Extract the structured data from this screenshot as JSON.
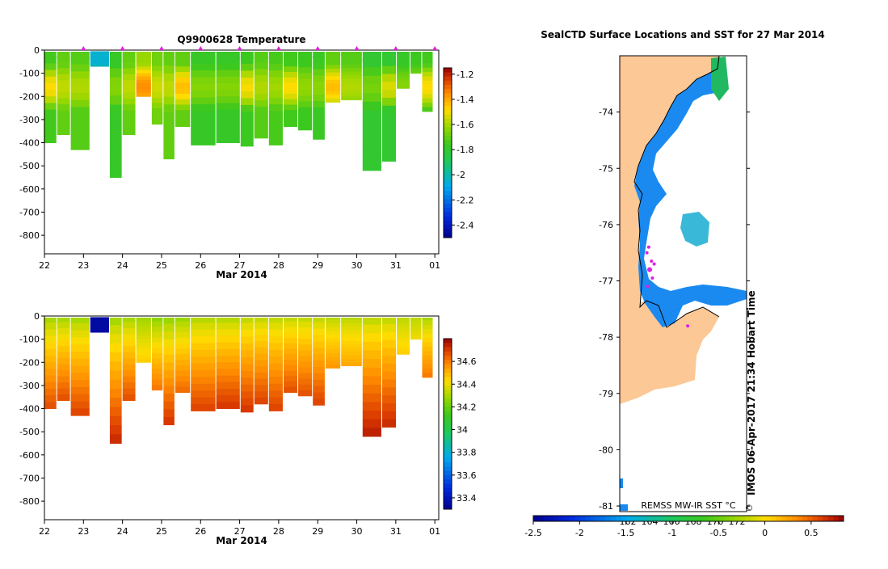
{
  "chart_data": [
    {
      "type": "heatmap",
      "title": "Q9900628  Temperature",
      "xlabel": "Mar 2014",
      "ylabel": "",
      "x_ticks": [
        "22",
        "23",
        "24",
        "25",
        "26",
        "27",
        "28",
        "29",
        "30",
        "31",
        "01"
      ],
      "y_ticks": [
        "0",
        "-100",
        "-200",
        "-300",
        "-400",
        "-500",
        "-600",
        "-700",
        "-800"
      ],
      "ylim": [
        -880,
        0
      ],
      "xlim": [
        22,
        32.1
      ],
      "colorbar": {
        "min": -2.5,
        "max": -1.15,
        "ticks": [
          "-1.2",
          "-1.4",
          "-1.6",
          "-1.8",
          "-2",
          "-2.2",
          "-2.4"
        ],
        "tick_values": [
          -1.2,
          -1.4,
          -1.6,
          -1.8,
          -2,
          -2.2,
          -2.4
        ]
      },
      "profiles": [
        {
          "day": 22.15,
          "max_depth": 400,
          "value": -1.75
        },
        {
          "day": 22.5,
          "max_depth": 365,
          "value": -1.7
        },
        {
          "day": 22.85,
          "max_depth": 430,
          "value": -1.72
        },
        {
          "day": 23.5,
          "max_depth": 70,
          "value": -2.05
        },
        {
          "day": 23.85,
          "max_depth": 550,
          "value": -1.78
        },
        {
          "day": 24.15,
          "max_depth": 365,
          "value": -1.7
        },
        {
          "day": 24.55,
          "max_depth": 200,
          "value": -1.62
        },
        {
          "day": 24.95,
          "max_depth": 320,
          "value": -1.68
        },
        {
          "day": 25.15,
          "max_depth": 470,
          "value": -1.7
        },
        {
          "day": 25.55,
          "max_depth": 330,
          "value": -1.7
        },
        {
          "day": 25.95,
          "max_depth": 410,
          "value": -1.78
        },
        {
          "day": 26.85,
          "max_depth": 400,
          "value": -1.78
        },
        {
          "day": 27.2,
          "max_depth": 415,
          "value": -1.76
        },
        {
          "day": 27.55,
          "max_depth": 380,
          "value": -1.72
        },
        {
          "day": 27.95,
          "max_depth": 410,
          "value": -1.74
        },
        {
          "day": 28.3,
          "max_depth": 330,
          "value": -1.75
        },
        {
          "day": 28.7,
          "max_depth": 345,
          "value": -1.76
        },
        {
          "day": 29.05,
          "max_depth": 385,
          "value": -1.77
        },
        {
          "day": 29.35,
          "max_depth": 225,
          "value": -1.7
        },
        {
          "day": 29.85,
          "max_depth": 215,
          "value": -1.72
        },
        {
          "day": 30.45,
          "max_depth": 520,
          "value": -1.8
        },
        {
          "day": 30.85,
          "max_depth": 480,
          "value": -1.8
        },
        {
          "day": 31.2,
          "max_depth": 165,
          "value": -1.78
        },
        {
          "day": 31.55,
          "max_depth": 100,
          "value": -1.76
        },
        {
          "day": 31.8,
          "max_depth": 265,
          "value": -1.75
        }
      ]
    },
    {
      "type": "heatmap",
      "title": "",
      "xlabel": "Mar 2014",
      "ylabel": "",
      "x_ticks": [
        "22",
        "23",
        "24",
        "25",
        "26",
        "27",
        "28",
        "29",
        "30",
        "31",
        "01"
      ],
      "y_ticks": [
        "0",
        "-100",
        "-200",
        "-300",
        "-400",
        "-500",
        "-600",
        "-700",
        "-800"
      ],
      "ylim": [
        -880,
        0
      ],
      "xlim": [
        22,
        32.1
      ],
      "colorbar": {
        "min": 33.3,
        "max": 34.8,
        "ticks": [
          "34.6",
          "34.4",
          "34.2",
          "34",
          "33.8",
          "33.6",
          "33.4"
        ],
        "tick_values": [
          34.6,
          34.4,
          34.2,
          34,
          33.8,
          33.6,
          33.4
        ]
      },
      "profiles": [
        {
          "day": 22.15,
          "max_depth": 400,
          "surface": 34.3,
          "bottom": 34.66
        },
        {
          "day": 22.5,
          "max_depth": 365,
          "surface": 34.3,
          "bottom": 34.66
        },
        {
          "day": 22.85,
          "max_depth": 430,
          "surface": 34.3,
          "bottom": 34.68
        },
        {
          "day": 23.5,
          "max_depth": 70,
          "surface": 33.35,
          "bottom": 33.35
        },
        {
          "day": 23.85,
          "max_depth": 550,
          "surface": 34.3,
          "bottom": 34.72
        },
        {
          "day": 24.15,
          "max_depth": 365,
          "surface": 34.3,
          "bottom": 34.66
        },
        {
          "day": 24.55,
          "max_depth": 200,
          "surface": 34.28,
          "bottom": 34.45
        },
        {
          "day": 24.95,
          "max_depth": 320,
          "surface": 34.26,
          "bottom": 34.6
        },
        {
          "day": 25.15,
          "max_depth": 470,
          "surface": 34.28,
          "bottom": 34.7
        },
        {
          "day": 25.55,
          "max_depth": 330,
          "surface": 34.28,
          "bottom": 34.62
        },
        {
          "day": 25.95,
          "max_depth": 410,
          "surface": 34.32,
          "bottom": 34.68
        },
        {
          "day": 26.85,
          "max_depth": 400,
          "surface": 34.32,
          "bottom": 34.7
        },
        {
          "day": 27.2,
          "max_depth": 415,
          "surface": 34.34,
          "bottom": 34.7
        },
        {
          "day": 27.55,
          "max_depth": 380,
          "surface": 34.34,
          "bottom": 34.68
        },
        {
          "day": 27.95,
          "max_depth": 410,
          "surface": 34.34,
          "bottom": 34.68
        },
        {
          "day": 28.3,
          "max_depth": 330,
          "surface": 34.34,
          "bottom": 34.66
        },
        {
          "day": 28.7,
          "max_depth": 345,
          "surface": 34.34,
          "bottom": 34.66
        },
        {
          "day": 29.05,
          "max_depth": 385,
          "surface": 34.34,
          "bottom": 34.68
        },
        {
          "day": 29.35,
          "max_depth": 225,
          "surface": 34.32,
          "bottom": 34.55
        },
        {
          "day": 29.85,
          "max_depth": 215,
          "surface": 34.32,
          "bottom": 34.52
        },
        {
          "day": 30.45,
          "max_depth": 520,
          "surface": 34.34,
          "bottom": 34.74
        },
        {
          "day": 30.85,
          "max_depth": 480,
          "surface": 34.34,
          "bottom": 34.72
        },
        {
          "day": 31.2,
          "max_depth": 165,
          "surface": 34.32,
          "bottom": 34.45
        },
        {
          "day": 31.55,
          "max_depth": 100,
          "surface": 34.32,
          "bottom": 34.4
        },
        {
          "day": 31.8,
          "max_depth": 265,
          "surface": 34.3,
          "bottom": 34.6
        }
      ]
    },
    {
      "type": "heatmap",
      "title": "SealCTD Surface Locations and SST for 27 Mar 2014",
      "y_ticks": [
        "-74",
        "-75",
        "-76",
        "-77",
        "-78",
        "-79",
        "-80",
        "-81"
      ],
      "ylim": [
        -81.1,
        -73.0
      ],
      "x_ticks_inner": [
        "162",
        "164",
        "166",
        "168",
        "170",
        "172"
      ],
      "colorbar": {
        "min": -2.5,
        "max": 0.85,
        "ticks": [
          "-2.5",
          "-2",
          "-1.5",
          "-1",
          "-0.5",
          "0",
          "0.5"
        ],
        "tick_values": [
          -2.5,
          -2,
          -1.5,
          -1,
          -0.5,
          0,
          0.5
        ]
      },
      "legend_text": "REMSS MW-IR SST °C",
      "credit": "IMOS 06-Apr-2017 21:34 Hobart Time",
      "copyright_symbol": "©",
      "seal_points": [
        [
          -76.4,
          163.2
        ],
        [
          -76.5,
          163.0
        ],
        [
          -76.65,
          163.5
        ],
        [
          -76.8,
          163.3
        ],
        [
          -76.95,
          163.6
        ],
        [
          -77.1,
          163.1
        ],
        [
          -76.7,
          163.8
        ],
        [
          -77.8,
          167.5
        ]
      ],
      "land_color": "#fcc896",
      "sst_color": "#1a8af0"
    }
  ]
}
